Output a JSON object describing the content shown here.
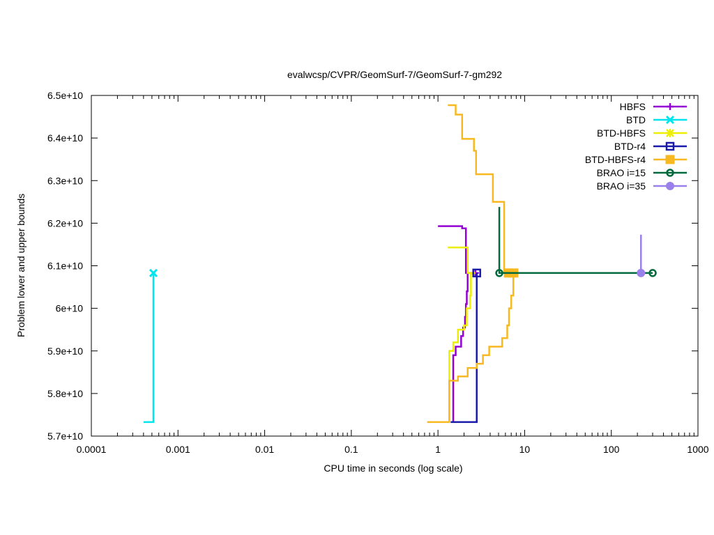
{
  "chart_data": {
    "type": "line",
    "title": "evalwcsp/CVPR/GeomSurf-7/GeomSurf-7-gm292",
    "xlabel": "CPU time in seconds (log scale)",
    "ylabel": "Problem lower and upper bounds",
    "xscale": "log",
    "xlim": [
      0.0001,
      1000
    ],
    "ylim": [
      57000000000.0,
      65000000000.0
    ],
    "x_ticks": [
      0.0001,
      0.001,
      0.01,
      0.1,
      1,
      10,
      100,
      1000
    ],
    "x_tick_labels": [
      "0.0001",
      "0.001",
      "0.01",
      "0.1",
      "1",
      "10",
      "100",
      "1000"
    ],
    "y_ticks": [
      57000000000.0,
      58000000000.0,
      59000000000.0,
      60000000000.0,
      61000000000.0,
      62000000000.0,
      63000000000.0,
      64000000000.0,
      65000000000.0
    ],
    "y_tick_labels": [
      "5.7e+10",
      "5.8e+10",
      "5.9e+10",
      "6e+10",
      "6.1e+10",
      "6.2e+10",
      "6.3e+10",
      "6.4e+10",
      "6.5e+10"
    ],
    "legend_position": "top-right",
    "series": [
      {
        "name": "HBFS",
        "color": "#9400d3",
        "marker": "plus",
        "upper": [
          [
            1.0,
            61930000000.0
          ],
          [
            1.9,
            61930000000.0
          ],
          [
            1.9,
            61880000000.0
          ],
          [
            2.1,
            61880000000.0
          ],
          [
            2.1,
            60830000000.0
          ],
          [
            2.7,
            60830000000.0
          ]
        ],
        "lower": [
          [
            1.5,
            57330000000.0
          ],
          [
            1.5,
            58900000000.0
          ],
          [
            1.6,
            58900000000.0
          ],
          [
            1.6,
            59100000000.0
          ],
          [
            1.85,
            59100000000.0
          ],
          [
            1.85,
            59350000000.0
          ],
          [
            1.95,
            59350000000.0
          ],
          [
            1.95,
            59550000000.0
          ],
          [
            2.05,
            59550000000.0
          ],
          [
            2.05,
            59800000000.0
          ],
          [
            2.1,
            59800000000.0
          ],
          [
            2.1,
            60100000000.0
          ],
          [
            2.15,
            60100000000.0
          ],
          [
            2.15,
            60400000000.0
          ],
          [
            2.2,
            60400000000.0
          ],
          [
            2.2,
            60830000000.0
          ]
        ],
        "markers": [
          [
            2.7,
            60830000000.0
          ]
        ]
      },
      {
        "name": "BTD",
        "color": "#00e5ee",
        "marker": "cross",
        "upper": [],
        "lower": [
          [
            0.0004,
            57330000000.0
          ],
          [
            0.00052,
            57330000000.0
          ],
          [
            0.00052,
            60830000000.0
          ]
        ],
        "markers": [
          [
            0.00052,
            60830000000.0
          ]
        ]
      },
      {
        "name": "BTD-HBFS",
        "color": "#eeee00",
        "marker": "star",
        "upper": [
          [
            1.3,
            61430000000.0
          ],
          [
            2.2,
            61430000000.0
          ],
          [
            2.2,
            60830000000.0
          ],
          [
            2.7,
            60830000000.0
          ]
        ],
        "lower": [
          [
            1.35,
            57330000000.0
          ],
          [
            1.35,
            59000000000.0
          ],
          [
            1.5,
            59000000000.0
          ],
          [
            1.5,
            59200000000.0
          ],
          [
            1.7,
            59200000000.0
          ],
          [
            1.7,
            59500000000.0
          ],
          [
            2.0,
            59500000000.0
          ],
          [
            2.0,
            59600000000.0
          ],
          [
            2.15,
            59600000000.0
          ],
          [
            2.15,
            60000000000.0
          ],
          [
            2.35,
            60000000000.0
          ],
          [
            2.35,
            60300000000.0
          ],
          [
            2.4,
            60300000000.0
          ],
          [
            2.4,
            60830000000.0
          ]
        ],
        "markers": []
      },
      {
        "name": "BTD-r4",
        "color": "#1a1aaa",
        "marker": "open-square",
        "upper": [],
        "lower": [
          [
            1.4,
            57330000000.0
          ],
          [
            2.8,
            57330000000.0
          ],
          [
            2.8,
            60830000000.0
          ]
        ],
        "markers": [
          [
            2.8,
            60830000000.0
          ]
        ]
      },
      {
        "name": "BTD-HBFS-r4",
        "color": "#f8b820",
        "marker": "filled-square",
        "upper": [
          [
            1.3,
            64770000000.0
          ],
          [
            1.6,
            64770000000.0
          ],
          [
            1.6,
            64550000000.0
          ],
          [
            1.9,
            64550000000.0
          ],
          [
            1.9,
            63980000000.0
          ],
          [
            2.6,
            63980000000.0
          ],
          [
            2.6,
            63700000000.0
          ],
          [
            2.75,
            63700000000.0
          ],
          [
            2.75,
            63150000000.0
          ],
          [
            4.3,
            63150000000.0
          ],
          [
            4.3,
            62500000000.0
          ],
          [
            5.8,
            62500000000.0
          ],
          [
            5.8,
            60830000000.0
          ],
          [
            8.0,
            60830000000.0
          ]
        ],
        "lower": [
          [
            0.75,
            57330000000.0
          ],
          [
            1.35,
            57330000000.0
          ],
          [
            1.35,
            58300000000.0
          ],
          [
            1.7,
            58300000000.0
          ],
          [
            1.7,
            58400000000.0
          ],
          [
            2.2,
            58400000000.0
          ],
          [
            2.2,
            58600000000.0
          ],
          [
            2.8,
            58600000000.0
          ],
          [
            2.8,
            58700000000.0
          ],
          [
            3.3,
            58700000000.0
          ],
          [
            3.3,
            58900000000.0
          ],
          [
            3.9,
            58900000000.0
          ],
          [
            3.9,
            59100000000.0
          ],
          [
            5.5,
            59100000000.0
          ],
          [
            5.5,
            59300000000.0
          ],
          [
            6.3,
            59300000000.0
          ],
          [
            6.3,
            59600000000.0
          ],
          [
            6.6,
            59600000000.0
          ],
          [
            6.6,
            60000000000.0
          ],
          [
            7.0,
            60000000000.0
          ],
          [
            7.0,
            60300000000.0
          ],
          [
            7.4,
            60300000000.0
          ],
          [
            7.4,
            60830000000.0
          ],
          [
            8.0,
            60830000000.0
          ]
        ],
        "markers": [
          [
            6.5,
            60830000000.0
          ],
          [
            7.5,
            60830000000.0
          ]
        ]
      },
      {
        "name": "BRAO i=15",
        "color": "#006a3c",
        "marker": "open-circle",
        "upper": [],
        "lower": [
          [
            5.1,
            62380000000.0
          ],
          [
            5.1,
            60830000000.0
          ],
          [
            300,
            60830000000.0
          ]
        ],
        "markers": [
          [
            5.1,
            60830000000.0
          ],
          [
            300,
            60830000000.0
          ]
        ]
      },
      {
        "name": "BRAO i=35",
        "color": "#9a80ea",
        "marker": "filled-circle",
        "upper": [],
        "lower": [
          [
            220,
            61730000000.0
          ],
          [
            220,
            60830000000.0
          ]
        ],
        "markers": [
          [
            220,
            60830000000.0
          ]
        ]
      }
    ]
  }
}
